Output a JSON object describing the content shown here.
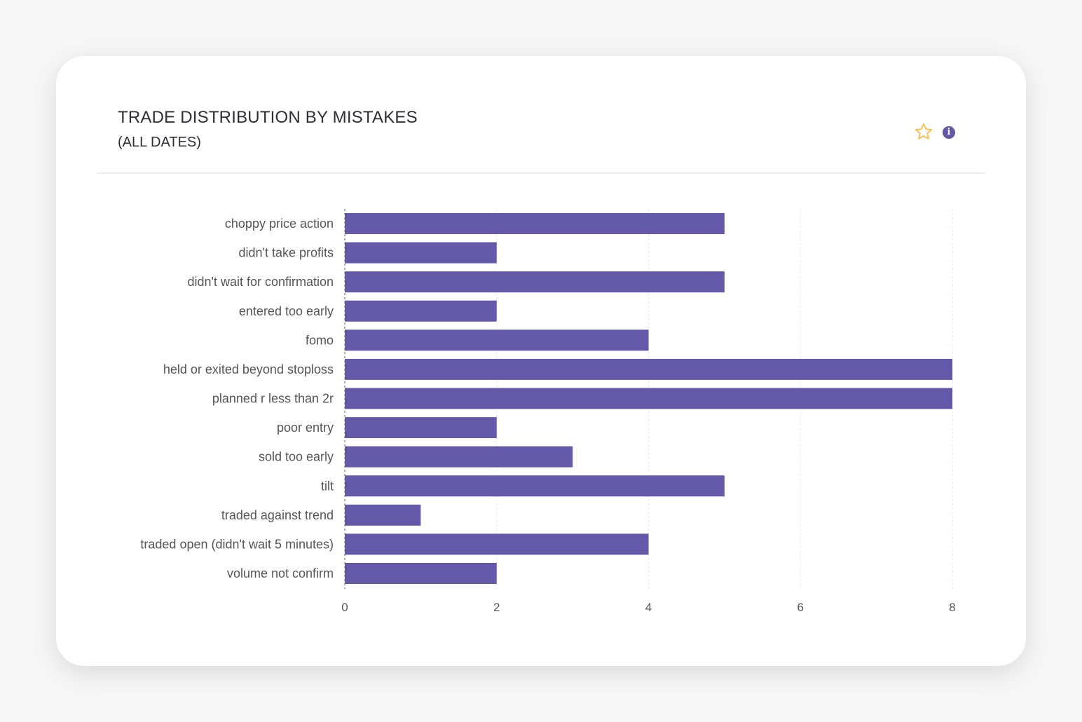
{
  "header": {
    "title": "TRADE DISTRIBUTION BY MISTAKES",
    "subtitle": "(ALL DATES)",
    "favorite_icon": "star-icon",
    "info_icon": "info-icon"
  },
  "chart_data": {
    "type": "bar",
    "orientation": "horizontal",
    "title": "TRADE DISTRIBUTION BY MISTAKES",
    "subtitle": "(ALL DATES)",
    "xlabel": "",
    "ylabel": "",
    "xlim": [
      0,
      8
    ],
    "xticks": [
      0,
      2,
      4,
      6,
      8
    ],
    "grid": true,
    "color": "#6459a8",
    "categories": [
      "choppy price action",
      "didn't take profits",
      "didn't wait for confirmation",
      "entered too early",
      "fomo",
      "held or exited beyond stoploss",
      "planned r less than 2r",
      "poor entry",
      "sold too early",
      "tilt",
      "traded against trend",
      "traded open (didn't wait 5 minutes)",
      "volume not confirm"
    ],
    "values": [
      5,
      2,
      5,
      2,
      4,
      8,
      8,
      2,
      3,
      5,
      1,
      4,
      2
    ]
  }
}
